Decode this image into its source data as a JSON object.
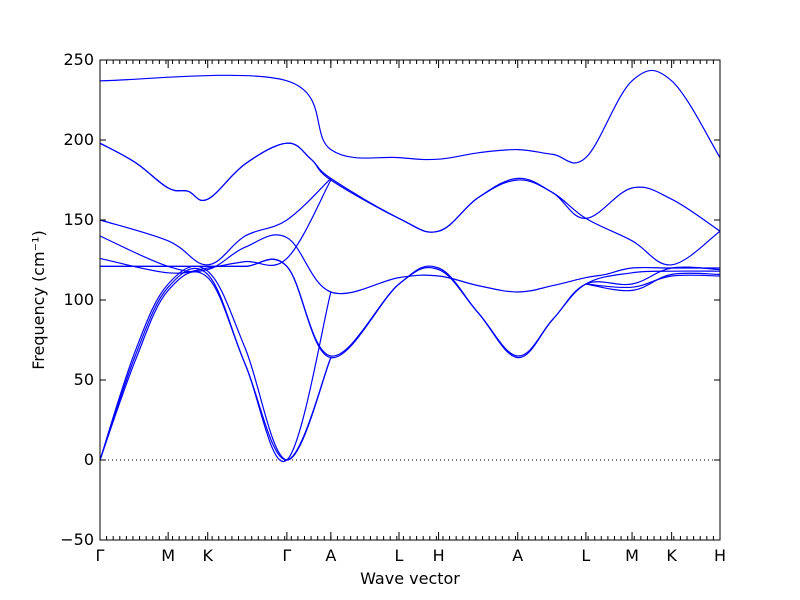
{
  "chart_data": {
    "type": "line",
    "title": "",
    "xlabel": "Wave vector",
    "ylabel": "Frequency (cm⁻¹)",
    "ylim": [
      -50,
      250
    ],
    "yticks": [
      -50,
      0,
      50,
      100,
      150,
      200,
      250
    ],
    "xlim": [
      0,
      14.1
    ],
    "grid": false,
    "zero_line": true,
    "band_color": "#0000ff",
    "xticks": [
      {
        "x": 0,
        "label": "Γ"
      },
      {
        "x": 1.55,
        "label": "M"
      },
      {
        "x": 2.45,
        "label": "K"
      },
      {
        "x": 4.25,
        "label": "Γ"
      },
      {
        "x": 5.25,
        "label": "A"
      },
      {
        "x": 6.8,
        "label": "L"
      },
      {
        "x": 7.7,
        "label": "H"
      },
      {
        "x": 9.5,
        "label": "A"
      },
      {
        "x": 11.05,
        "label": "L"
      },
      {
        "x": 12.1,
        "label": "M"
      },
      {
        "x": 13.0,
        "label": "K"
      },
      {
        "x": 14.1,
        "label": "H"
      }
    ],
    "series": [
      {
        "values": [
          [
            0,
            237
          ],
          [
            4.25,
            237
          ],
          [
            5.25,
            194
          ],
          [
            6.8,
            189
          ],
          [
            7.7,
            188
          ],
          [
            8.6,
            192
          ],
          [
            9.5,
            194
          ],
          [
            10.3,
            191
          ],
          [
            11.05,
            189
          ],
          [
            12.1,
            237
          ],
          [
            13.0,
            237
          ],
          [
            14.1,
            189
          ]
        ]
      },
      {
        "values": [
          [
            0,
            198
          ],
          [
            0.8,
            186
          ],
          [
            1.55,
            170
          ],
          [
            2.0,
            168
          ],
          [
            2.45,
            163
          ],
          [
            3.3,
            185
          ],
          [
            4.25,
            198
          ],
          [
            4.8,
            188
          ],
          [
            5.25,
            176
          ],
          [
            6.8,
            151
          ],
          [
            7.7,
            143
          ],
          [
            8.6,
            164
          ],
          [
            9.5,
            176
          ],
          [
            10.3,
            167
          ],
          [
            11.05,
            151
          ],
          [
            12.1,
            170
          ],
          [
            13.0,
            163
          ],
          [
            14.1,
            143
          ]
        ]
      },
      {
        "values": [
          [
            0,
            198
          ],
          [
            0.8,
            186
          ],
          [
            1.55,
            170
          ],
          [
            2.0,
            168
          ],
          [
            2.45,
            163
          ],
          [
            3.3,
            185
          ],
          [
            4.25,
            198
          ],
          [
            4.8,
            188
          ],
          [
            5.25,
            175
          ],
          [
            6.8,
            151
          ],
          [
            7.7,
            143
          ],
          [
            8.6,
            164
          ],
          [
            9.5,
            175
          ],
          [
            10.3,
            167
          ],
          [
            11.05,
            151
          ],
          [
            12.1,
            137
          ],
          [
            13.0,
            122
          ],
          [
            14.1,
            143
          ]
        ]
      },
      {
        "values": [
          [
            0,
            150
          ],
          [
            1.55,
            137
          ],
          [
            2.45,
            122
          ],
          [
            3.3,
            140
          ],
          [
            4.25,
            150
          ],
          [
            5.25,
            176
          ]
        ]
      },
      {
        "values": [
          [
            0,
            140
          ],
          [
            1.55,
            121
          ],
          [
            2.45,
            119
          ],
          [
            3.3,
            133
          ],
          [
            4.25,
            139
          ],
          [
            5.25,
            105
          ],
          [
            6.8,
            114
          ],
          [
            7.7,
            115
          ],
          [
            8.6,
            109
          ],
          [
            9.5,
            105
          ],
          [
            10.3,
            109
          ],
          [
            11.05,
            114
          ],
          [
            11.5,
            116
          ],
          [
            12.1,
            120
          ],
          [
            13.0,
            120
          ],
          [
            14.1,
            120
          ]
        ]
      },
      {
        "values": [
          [
            0,
            126
          ],
          [
            1.55,
            117
          ],
          [
            2.45,
            120
          ],
          [
            3.3,
            124
          ],
          [
            4.25,
            126
          ],
          [
            5.25,
            175
          ]
        ]
      },
      {
        "values": [
          [
            0,
            121
          ],
          [
            1.55,
            121
          ],
          [
            2.45,
            121
          ],
          [
            3.3,
            121
          ],
          [
            4.25,
            121
          ],
          [
            5.25,
            64
          ],
          [
            6.8,
            110
          ],
          [
            7.7,
            120
          ],
          [
            8.6,
            92
          ],
          [
            9.5,
            64
          ],
          [
            10.3,
            88
          ],
          [
            11.05,
            110
          ],
          [
            12.1,
            117
          ],
          [
            13.0,
            118
          ],
          [
            14.1,
            118
          ]
        ]
      },
      {
        "values": [
          [
            0,
            121
          ],
          [
            1.55,
            121
          ],
          [
            2.45,
            121
          ],
          [
            3.3,
            121
          ],
          [
            4.25,
            121
          ],
          [
            5.25,
            65
          ],
          [
            6.8,
            110
          ],
          [
            7.7,
            119
          ],
          [
            8.6,
            92
          ],
          [
            9.5,
            65
          ],
          [
            10.3,
            88
          ],
          [
            11.05,
            110
          ],
          [
            12.1,
            110
          ],
          [
            13.0,
            120
          ],
          [
            14.1,
            119
          ]
        ]
      },
      {
        "values": [
          [
            0,
            0
          ],
          [
            0.8,
            68
          ],
          [
            1.55,
            110
          ],
          [
            2.45,
            118
          ],
          [
            3.3,
            70
          ],
          [
            4.25,
            0
          ],
          [
            5.25,
            64
          ]
        ]
      },
      {
        "values": [
          [
            0,
            0
          ],
          [
            0.8,
            65
          ],
          [
            1.55,
            108
          ],
          [
            2.45,
            116
          ],
          [
            3.3,
            60
          ],
          [
            4.25,
            0
          ],
          [
            5.25,
            64
          ]
        ]
      },
      {
        "values": [
          [
            0,
            0
          ],
          [
            0.8,
            62
          ],
          [
            1.55,
            106
          ],
          [
            2.45,
            114
          ],
          [
            3.3,
            60
          ],
          [
            4.25,
            0
          ],
          [
            5.25,
            105
          ]
        ]
      },
      {
        "values": [
          [
            11.05,
            110
          ],
          [
            12.1,
            108
          ],
          [
            13.0,
            115
          ],
          [
            14.1,
            115
          ]
        ]
      },
      {
        "values": [
          [
            11.05,
            110
          ],
          [
            12.1,
            106
          ],
          [
            13.0,
            116
          ],
          [
            14.1,
            116
          ]
        ]
      }
    ]
  }
}
